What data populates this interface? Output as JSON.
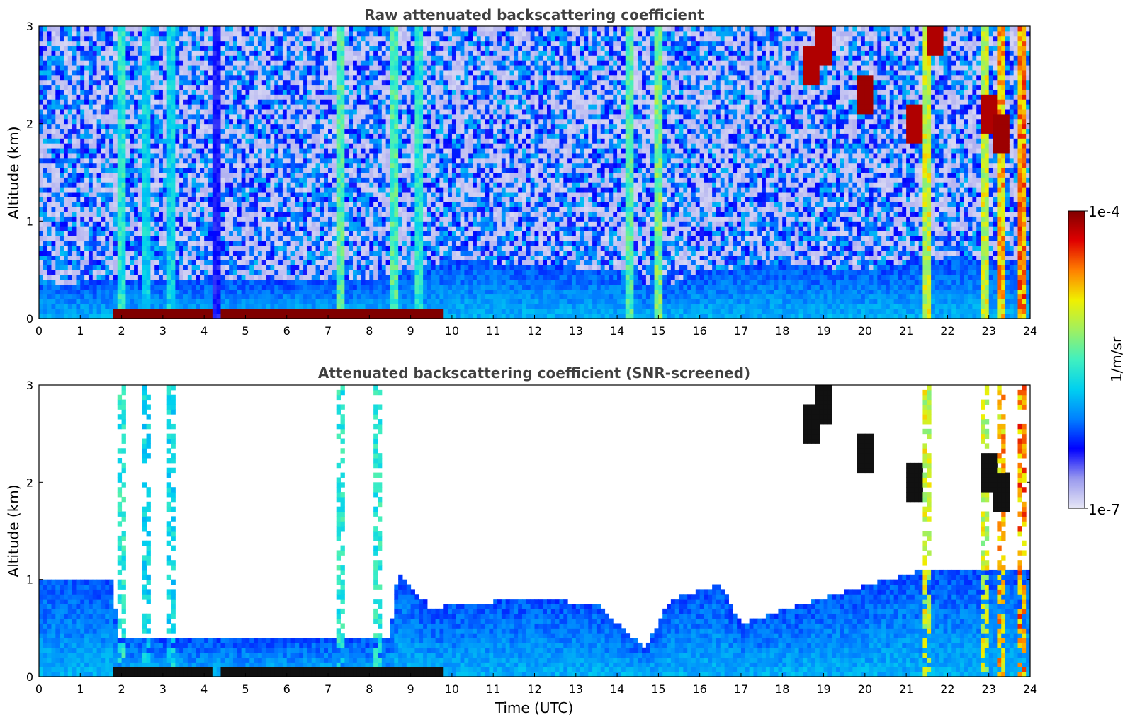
{
  "chart_data": [
    {
      "type": "heatmap",
      "title": "Raw attenuated backscattering coefficient",
      "xlabel": "",
      "ylabel": "Altitude (km)",
      "xlim": [
        0,
        24
      ],
      "ylim": [
        0,
        3
      ],
      "xticks": [
        0,
        1,
        2,
        3,
        4,
        5,
        6,
        7,
        8,
        9,
        10,
        11,
        12,
        13,
        14,
        15,
        16,
        17,
        18,
        19,
        20,
        21,
        22,
        23,
        24
      ],
      "yticks": [
        0,
        1,
        2,
        3
      ],
      "snr_screened": false,
      "surface_layer": {
        "x_range": [
          1.8,
          9.8
        ],
        "gap": [
          4.2,
          4.4
        ],
        "altitude_km": [
          0,
          0.08
        ],
        "level": 1.0
      },
      "boundary_layer_top_km": [
        {
          "x": 0,
          "y": 0.35
        },
        {
          "x": 2,
          "y": 0.4
        },
        {
          "x": 4,
          "y": 0.4
        },
        {
          "x": 6,
          "y": 0.38
        },
        {
          "x": 8,
          "y": 0.4
        },
        {
          "x": 10,
          "y": 0.6
        },
        {
          "x": 12,
          "y": 0.55
        },
        {
          "x": 14,
          "y": 0.5
        },
        {
          "x": 15,
          "y": 0.3
        },
        {
          "x": 16,
          "y": 0.5
        },
        {
          "x": 18,
          "y": 0.55
        },
        {
          "x": 20,
          "y": 0.5
        },
        {
          "x": 21.5,
          "y": 0.6
        },
        {
          "x": 24,
          "y": 0.6
        }
      ],
      "vertical_bands": [
        {
          "x": 2.0,
          "level": 0.5
        },
        {
          "x": 2.6,
          "level": 0.45
        },
        {
          "x": 3.2,
          "level": 0.45
        },
        {
          "x": 4.3,
          "level": 0.2
        },
        {
          "x": 7.3,
          "level": 0.55
        },
        {
          "x": 8.6,
          "level": 0.55
        },
        {
          "x": 9.2,
          "level": 0.5
        },
        {
          "x": 14.3,
          "level": 0.55
        },
        {
          "x": 15.0,
          "level": 0.6
        },
        {
          "x": 21.5,
          "level": 0.7
        },
        {
          "x": 22.9,
          "level": 0.7
        },
        {
          "x": 23.3,
          "level": 0.8
        },
        {
          "x": 23.8,
          "level": 0.85
        }
      ],
      "cloud_patches": [
        {
          "x": 18.7,
          "y": 2.6,
          "level": 0.95
        },
        {
          "x": 19.0,
          "y": 2.8,
          "level": 0.95
        },
        {
          "x": 20.0,
          "y": 2.3,
          "level": 0.97
        },
        {
          "x": 21.2,
          "y": 2.0,
          "level": 0.95
        },
        {
          "x": 21.7,
          "y": 2.9,
          "level": 0.95
        },
        {
          "x": 23.0,
          "y": 2.1,
          "level": 0.95
        },
        {
          "x": 23.3,
          "y": 1.9,
          "level": 0.97
        }
      ]
    },
    {
      "type": "heatmap",
      "title": "Attenuated backscattering coefficient (SNR-screened)",
      "xlabel": "Time (UTC)",
      "ylabel": "Altitude (km)",
      "xlim": [
        0,
        24
      ],
      "ylim": [
        0,
        3
      ],
      "xticks": [
        0,
        1,
        2,
        3,
        4,
        5,
        6,
        7,
        8,
        9,
        10,
        11,
        12,
        13,
        14,
        15,
        16,
        17,
        18,
        19,
        20,
        21,
        22,
        23,
        24
      ],
      "yticks": [
        0,
        1,
        2,
        3
      ],
      "snr_screened": true,
      "surface_layer": {
        "x_range": [
          1.8,
          9.8
        ],
        "gap": [
          4.2,
          4.4
        ],
        "altitude_km": [
          0,
          0.08
        ],
        "level": 1.0
      },
      "boundary_layer_top_km": [
        {
          "x": 0,
          "y": 1.0
        },
        {
          "x": 1.8,
          "y": 1.0
        },
        {
          "x": 1.9,
          "y": 0.4
        },
        {
          "x": 8.5,
          "y": 0.4
        },
        {
          "x": 8.7,
          "y": 1.1
        },
        {
          "x": 9.5,
          "y": 0.7
        },
        {
          "x": 10,
          "y": 0.75
        },
        {
          "x": 12,
          "y": 0.8
        },
        {
          "x": 13.5,
          "y": 0.75
        },
        {
          "x": 14.0,
          "y": 0.55
        },
        {
          "x": 14.7,
          "y": 0.3
        },
        {
          "x": 15.3,
          "y": 0.8
        },
        {
          "x": 16.5,
          "y": 0.95
        },
        {
          "x": 17.0,
          "y": 0.55
        },
        {
          "x": 18.5,
          "y": 0.75
        },
        {
          "x": 20.5,
          "y": 1.0
        },
        {
          "x": 21.5,
          "y": 1.1
        },
        {
          "x": 24,
          "y": 1.1
        }
      ],
      "vertical_bands": [
        {
          "x": 2.0,
          "level": 0.5
        },
        {
          "x": 2.6,
          "level": 0.45
        },
        {
          "x": 3.2,
          "level": 0.45
        },
        {
          "x": 7.3,
          "level": 0.5
        },
        {
          "x": 8.2,
          "level": 0.5
        },
        {
          "x": 21.5,
          "level": 0.7
        },
        {
          "x": 22.9,
          "level": 0.7
        },
        {
          "x": 23.3,
          "level": 0.8
        },
        {
          "x": 23.8,
          "level": 0.85
        }
      ],
      "cloud_patches": [
        {
          "x": 18.7,
          "y": 2.6,
          "level": 1.0
        },
        {
          "x": 19.0,
          "y": 2.8,
          "level": 1.0
        },
        {
          "x": 20.0,
          "y": 2.3,
          "level": 1.0
        },
        {
          "x": 21.2,
          "y": 2.0,
          "level": 1.0
        },
        {
          "x": 23.0,
          "y": 2.1,
          "level": 1.0
        },
        {
          "x": 23.3,
          "y": 1.9,
          "level": 1.0
        }
      ]
    }
  ],
  "colorbar": {
    "label": "1/m/sr",
    "max_label": "1e-4",
    "min_label": "1e-7",
    "colors": [
      "#e6e6f5",
      "#9999ee",
      "#0000ff",
      "#0080ff",
      "#00d0f0",
      "#40f0c0",
      "#a0f060",
      "#f0f000",
      "#ff8000",
      "#e00000",
      "#800000"
    ]
  }
}
